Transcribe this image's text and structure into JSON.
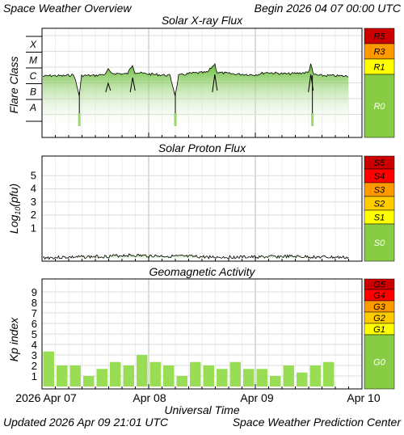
{
  "header": {
    "title": "Space Weather Overview",
    "begin": "Begin 2026 04 07 00:00 UTC"
  },
  "footer": {
    "updated": "Updated 2026 Apr 09 21:01 UTC",
    "center": "Space Weather Prediction Center"
  },
  "x_axis": {
    "label": "Universal Time",
    "ticks": [
      "2026 Apr 07",
      "Apr 08",
      "Apr 09",
      "Apr 10"
    ]
  },
  "colors": {
    "red_dark": "#cc0000",
    "red": "#ff0000",
    "orange": "#ff9900",
    "yellow_orange": "#ffcc00",
    "yellow": "#ffff00",
    "green": "#88cc44",
    "bar_green": "#99dd55",
    "frame": "#000000",
    "grid": "#cccccc"
  },
  "chart_data": [
    {
      "type": "line",
      "title": "Solar X-ray Flux",
      "ylabel": "Flare Class",
      "yticks": [
        "X",
        "M",
        "C",
        "B",
        "A"
      ],
      "scales": [
        "R5",
        "R3",
        "R1",
        "R0"
      ],
      "x_range_days": [
        0,
        3
      ],
      "y_range_class": [
        0,
        6
      ],
      "series_description_days_vs_classlevel": [
        [
          0.0,
          2.85
        ],
        [
          0.1,
          2.9
        ],
        [
          0.2,
          2.88
        ],
        [
          0.3,
          2.95
        ],
        [
          0.35,
          1.6
        ],
        [
          0.37,
          2.9
        ],
        [
          0.5,
          2.9
        ],
        [
          0.6,
          3.0
        ],
        [
          0.62,
          3.35
        ],
        [
          0.64,
          3.05
        ],
        [
          0.8,
          3.0
        ],
        [
          0.85,
          3.6
        ],
        [
          0.87,
          3.1
        ],
        [
          1.0,
          3.0
        ],
        [
          1.2,
          2.9
        ],
        [
          1.25,
          1.6
        ],
        [
          1.28,
          2.9
        ],
        [
          1.4,
          3.05
        ],
        [
          1.55,
          3.1
        ],
        [
          1.62,
          3.65
        ],
        [
          1.64,
          3.1
        ],
        [
          1.8,
          3.0
        ],
        [
          2.0,
          2.95
        ],
        [
          2.1,
          3.1
        ],
        [
          2.3,
          3.0
        ],
        [
          2.5,
          3.1
        ],
        [
          2.52,
          3.7
        ],
        [
          2.54,
          3.0
        ],
        [
          2.6,
          2.9
        ],
        [
          2.7,
          2.9
        ],
        [
          2.9,
          2.85
        ],
        [
          3.0,
          2.85
        ]
      ]
    },
    {
      "type": "line",
      "title": "Solar Proton Flux",
      "ylabel": "Log10(pfu)",
      "ylabel_main": "Log",
      "ylabel_sub": "10",
      "ylabel_tail": "(pfu)",
      "yticks": [
        "5",
        "4",
        "3",
        "2",
        "1"
      ],
      "scales": [
        "S5",
        "S4",
        "S3",
        "S2",
        "S1",
        "S0"
      ],
      "y_range": [
        -2,
        6
      ],
      "series": [
        [
          0.0,
          -1.25
        ],
        [
          0.3,
          -1.2
        ],
        [
          0.6,
          -1.15
        ],
        [
          0.8,
          -1.05
        ],
        [
          1.0,
          -1.1
        ],
        [
          1.3,
          -1.15
        ],
        [
          1.6,
          -1.2
        ],
        [
          2.0,
          -1.2
        ],
        [
          2.3,
          -1.15
        ],
        [
          2.6,
          -1.2
        ],
        [
          3.0,
          -1.25
        ]
      ]
    },
    {
      "type": "bar",
      "title": "Geomagnetic Activity",
      "ylabel": "Kp index",
      "yticks": [
        "9",
        "8",
        "7",
        "6",
        "5",
        "4",
        "3",
        "2",
        "1"
      ],
      "scales": [
        "G5",
        "G4",
        "G3",
        "G2",
        "G1",
        "G0"
      ],
      "ylim": [
        0,
        10
      ],
      "values": [
        3.33,
        2.0,
        2.0,
        1.0,
        1.67,
        2.33,
        2.0,
        3.0,
        2.33,
        2.0,
        1.0,
        2.33,
        2.0,
        1.67,
        2.33,
        1.67,
        1.67,
        1.0,
        2.0,
        1.33,
        2.0,
        2.33
      ]
    }
  ]
}
